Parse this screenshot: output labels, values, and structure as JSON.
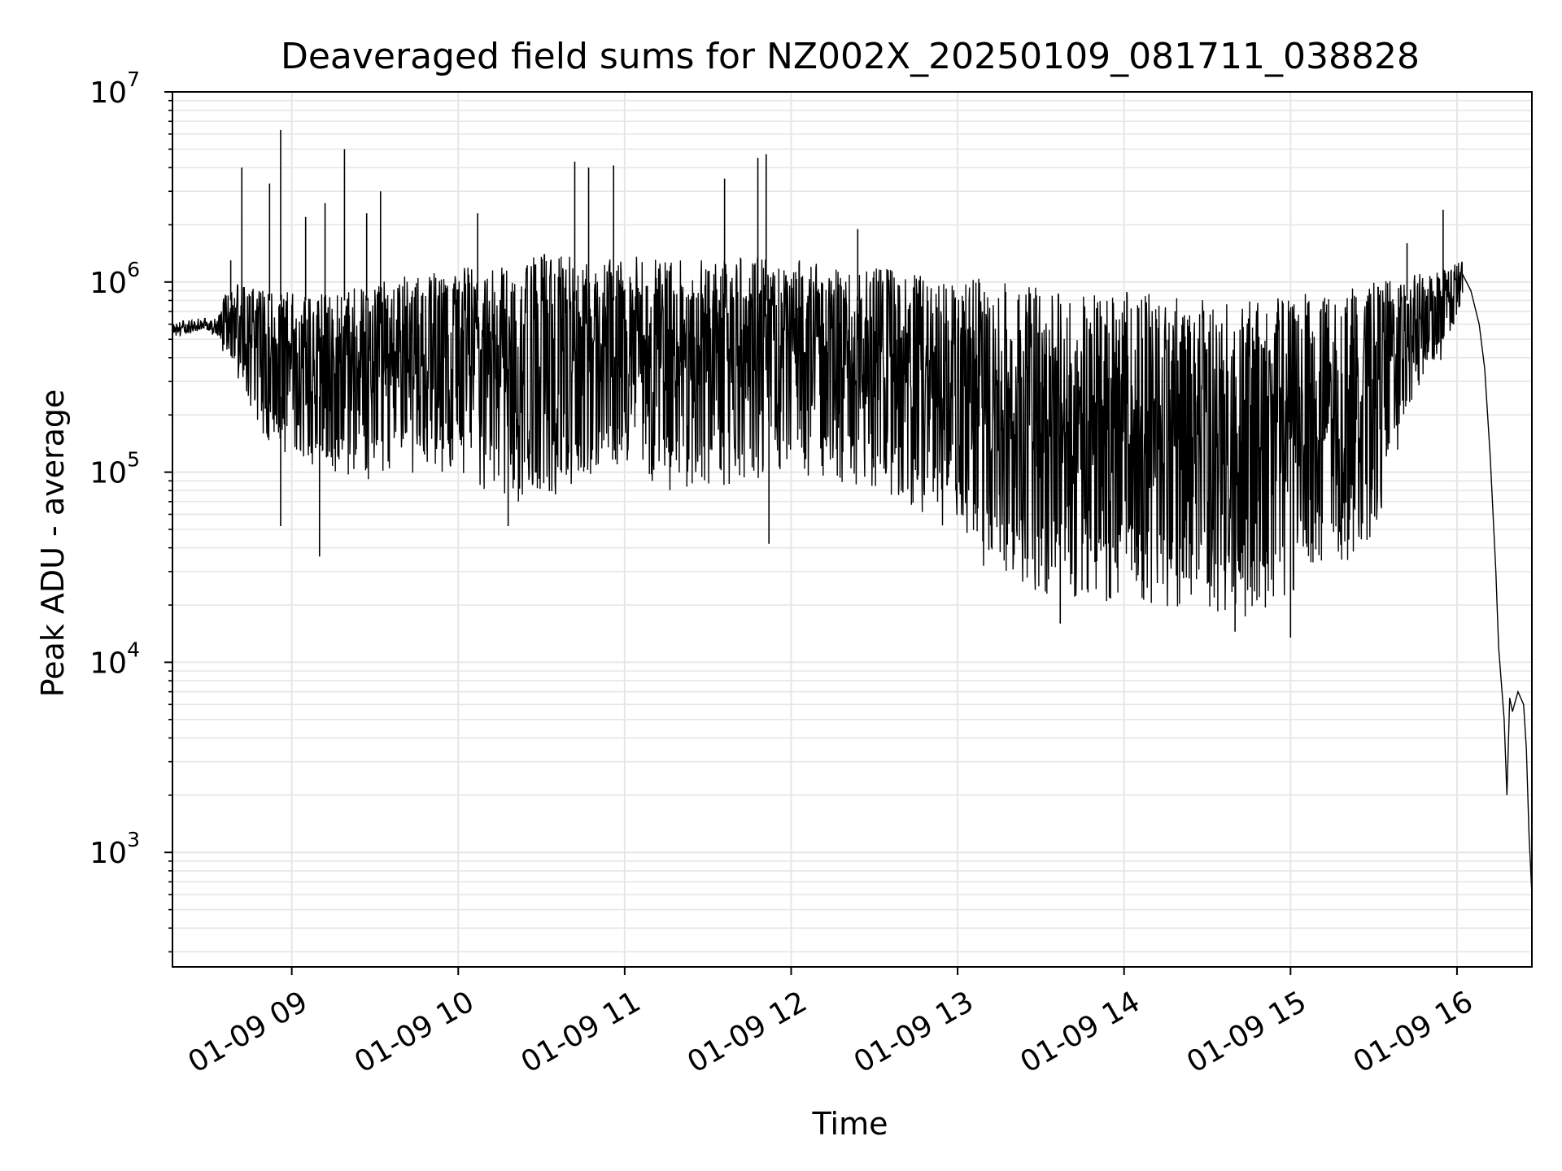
{
  "chart_data": {
    "type": "line",
    "title": "Deaveraged field sums for NZ002X_20250109_081711_038828",
    "xlabel": "Time",
    "ylabel": "Peak ADU - average",
    "yscale": "log",
    "ylim": [
      250,
      10000000
    ],
    "xlim": [
      "2025-01-09 08:17",
      "2025-01-09 16:27"
    ],
    "grid": true,
    "line_color": "#000000",
    "grid_color": "#e6e6e6",
    "x_ticks": [
      {
        "value": "2025-01-09 09:00",
        "label": "01-09 09"
      },
      {
        "value": "2025-01-09 10:00",
        "label": "01-09 10"
      },
      {
        "value": "2025-01-09 11:00",
        "label": "01-09 11"
      },
      {
        "value": "2025-01-09 12:00",
        "label": "01-09 12"
      },
      {
        "value": "2025-01-09 13:00",
        "label": "01-09 13"
      },
      {
        "value": "2025-01-09 14:00",
        "label": "01-09 14"
      },
      {
        "value": "2025-01-09 15:00",
        "label": "01-09 15"
      },
      {
        "value": "2025-01-09 16:00",
        "label": "01-09 16"
      }
    ],
    "y_ticks": [
      {
        "value": 1000,
        "base": "10",
        "exp": "3"
      },
      {
        "value": 10000,
        "base": "10",
        "exp": "4"
      },
      {
        "value": 100000,
        "base": "10",
        "exp": "5"
      },
      {
        "value": 1000000,
        "base": "10",
        "exp": "6"
      },
      {
        "value": 10000000,
        "base": "10",
        "exp": "7"
      }
    ],
    "envelope": [
      {
        "t": "2025-01-09 08:17",
        "low": 480000,
        "high": 650000
      },
      {
        "t": "2025-01-09 08:30",
        "low": 520000,
        "high": 700000
      },
      {
        "t": "2025-01-09 08:40",
        "low": 320000,
        "high": 1000000
      },
      {
        "t": "2025-01-09 08:50",
        "low": 150000,
        "high": 900000
      },
      {
        "t": "2025-01-09 09:00",
        "low": 120000,
        "high": 900000
      },
      {
        "t": "2025-01-09 09:15",
        "low": 100000,
        "high": 900000
      },
      {
        "t": "2025-01-09 09:30",
        "low": 90000,
        "high": 1000000
      },
      {
        "t": "2025-01-09 09:45",
        "low": 100000,
        "high": 1100000
      },
      {
        "t": "2025-01-09 10:00",
        "low": 100000,
        "high": 1200000
      },
      {
        "t": "2025-01-09 10:15",
        "low": 70000,
        "high": 1300000
      },
      {
        "t": "2025-01-09 10:30",
        "low": 70000,
        "high": 1400000
      },
      {
        "t": "2025-01-09 10:45",
        "low": 90000,
        "high": 1400000
      },
      {
        "t": "2025-01-09 11:00",
        "low": 110000,
        "high": 1400000
      },
      {
        "t": "2025-01-09 11:15",
        "low": 80000,
        "high": 1300000
      },
      {
        "t": "2025-01-09 11:30",
        "low": 80000,
        "high": 1300000
      },
      {
        "t": "2025-01-09 11:45",
        "low": 90000,
        "high": 1400000
      },
      {
        "t": "2025-01-09 12:00",
        "low": 100000,
        "high": 1300000
      },
      {
        "t": "2025-01-09 12:15",
        "low": 90000,
        "high": 1300000
      },
      {
        "t": "2025-01-09 12:30",
        "low": 80000,
        "high": 1200000
      },
      {
        "t": "2025-01-09 12:45",
        "low": 60000,
        "high": 1100000
      },
      {
        "t": "2025-01-09 13:00",
        "low": 45000,
        "high": 1100000
      },
      {
        "t": "2025-01-09 13:15",
        "low": 25000,
        "high": 1000000
      },
      {
        "t": "2025-01-09 13:30",
        "low": 22000,
        "high": 1000000
      },
      {
        "t": "2025-01-09 13:45",
        "low": 21000,
        "high": 900000
      },
      {
        "t": "2025-01-09 14:00",
        "low": 21000,
        "high": 900000
      },
      {
        "t": "2025-01-09 14:15",
        "low": 19000,
        "high": 850000
      },
      {
        "t": "2025-01-09 14:30",
        "low": 18000,
        "high": 800000
      },
      {
        "t": "2025-01-09 14:45",
        "low": 17000,
        "high": 800000
      },
      {
        "t": "2025-01-09 15:00",
        "low": 21000,
        "high": 850000
      },
      {
        "t": "2025-01-09 15:15",
        "low": 28000,
        "high": 900000
      },
      {
        "t": "2025-01-09 15:30",
        "low": 45000,
        "high": 1000000
      },
      {
        "t": "2025-01-09 15:45",
        "low": 250000,
        "high": 1100000
      },
      {
        "t": "2025-01-09 15:55",
        "low": 400000,
        "high": 1200000
      },
      {
        "t": "2025-01-09 16:02",
        "low": 700000,
        "high": 1300000
      }
    ],
    "tail": [
      {
        "t": "2025-01-09 16:02",
        "y": 1100000
      },
      {
        "t": "2025-01-09 16:05",
        "y": 900000
      },
      {
        "t": "2025-01-09 16:08",
        "y": 600000
      },
      {
        "t": "2025-01-09 16:10",
        "y": 350000
      },
      {
        "t": "2025-01-09 16:12",
        "y": 120000
      },
      {
        "t": "2025-01-09 16:14",
        "y": 30000
      },
      {
        "t": "2025-01-09 16:15",
        "y": 12000
      },
      {
        "t": "2025-01-09 16:17",
        "y": 5000
      },
      {
        "t": "2025-01-09 16:18",
        "y": 2000
      },
      {
        "t": "2025-01-09 16:19",
        "y": 6500
      },
      {
        "t": "2025-01-09 16:20",
        "y": 5500
      },
      {
        "t": "2025-01-09 16:22",
        "y": 7000
      },
      {
        "t": "2025-01-09 16:24",
        "y": 6000
      },
      {
        "t": "2025-01-09 16:25",
        "y": 3500
      },
      {
        "t": "2025-01-09 16:26",
        "y": 1200
      },
      {
        "t": "2025-01-09 16:27",
        "y": 600
      }
    ],
    "spikes": [
      {
        "t": "2025-01-09 08:38",
        "y": 1300000
      },
      {
        "t": "2025-01-09 08:42",
        "y": 4000000
      },
      {
        "t": "2025-01-09 08:52",
        "y": 3300000
      },
      {
        "t": "2025-01-09 08:56",
        "y": 6300000
      },
      {
        "t": "2025-01-09 09:05",
        "y": 2200000
      },
      {
        "t": "2025-01-09 09:12",
        "y": 2600000
      },
      {
        "t": "2025-01-09 09:19",
        "y": 5000000
      },
      {
        "t": "2025-01-09 09:27",
        "y": 2300000
      },
      {
        "t": "2025-01-09 09:32",
        "y": 3000000
      },
      {
        "t": "2025-01-09 10:07",
        "y": 2300000
      },
      {
        "t": "2025-01-09 10:42",
        "y": 4300000
      },
      {
        "t": "2025-01-09 10:47",
        "y": 4000000
      },
      {
        "t": "2025-01-09 10:56",
        "y": 4100000
      },
      {
        "t": "2025-01-09 11:36",
        "y": 3500000
      },
      {
        "t": "2025-01-09 11:48",
        "y": 4500000
      },
      {
        "t": "2025-01-09 11:51",
        "y": 4700000
      },
      {
        "t": "2025-01-09 12:24",
        "y": 1900000
      },
      {
        "t": "2025-01-09 15:42",
        "y": 1600000
      },
      {
        "t": "2025-01-09 15:55",
        "y": 2400000
      }
    ],
    "dips": [
      {
        "t": "2025-01-09 08:56",
        "y": 52000
      },
      {
        "t": "2025-01-09 09:10",
        "y": 36000
      },
      {
        "t": "2025-01-09 10:18",
        "y": 52000
      },
      {
        "t": "2025-01-09 11:52",
        "y": 42000
      },
      {
        "t": "2025-01-09 13:37",
        "y": 16000
      },
      {
        "t": "2025-01-09 14:40",
        "y": 14500
      },
      {
        "t": "2025-01-09 15:00",
        "y": 13500
      }
    ]
  }
}
